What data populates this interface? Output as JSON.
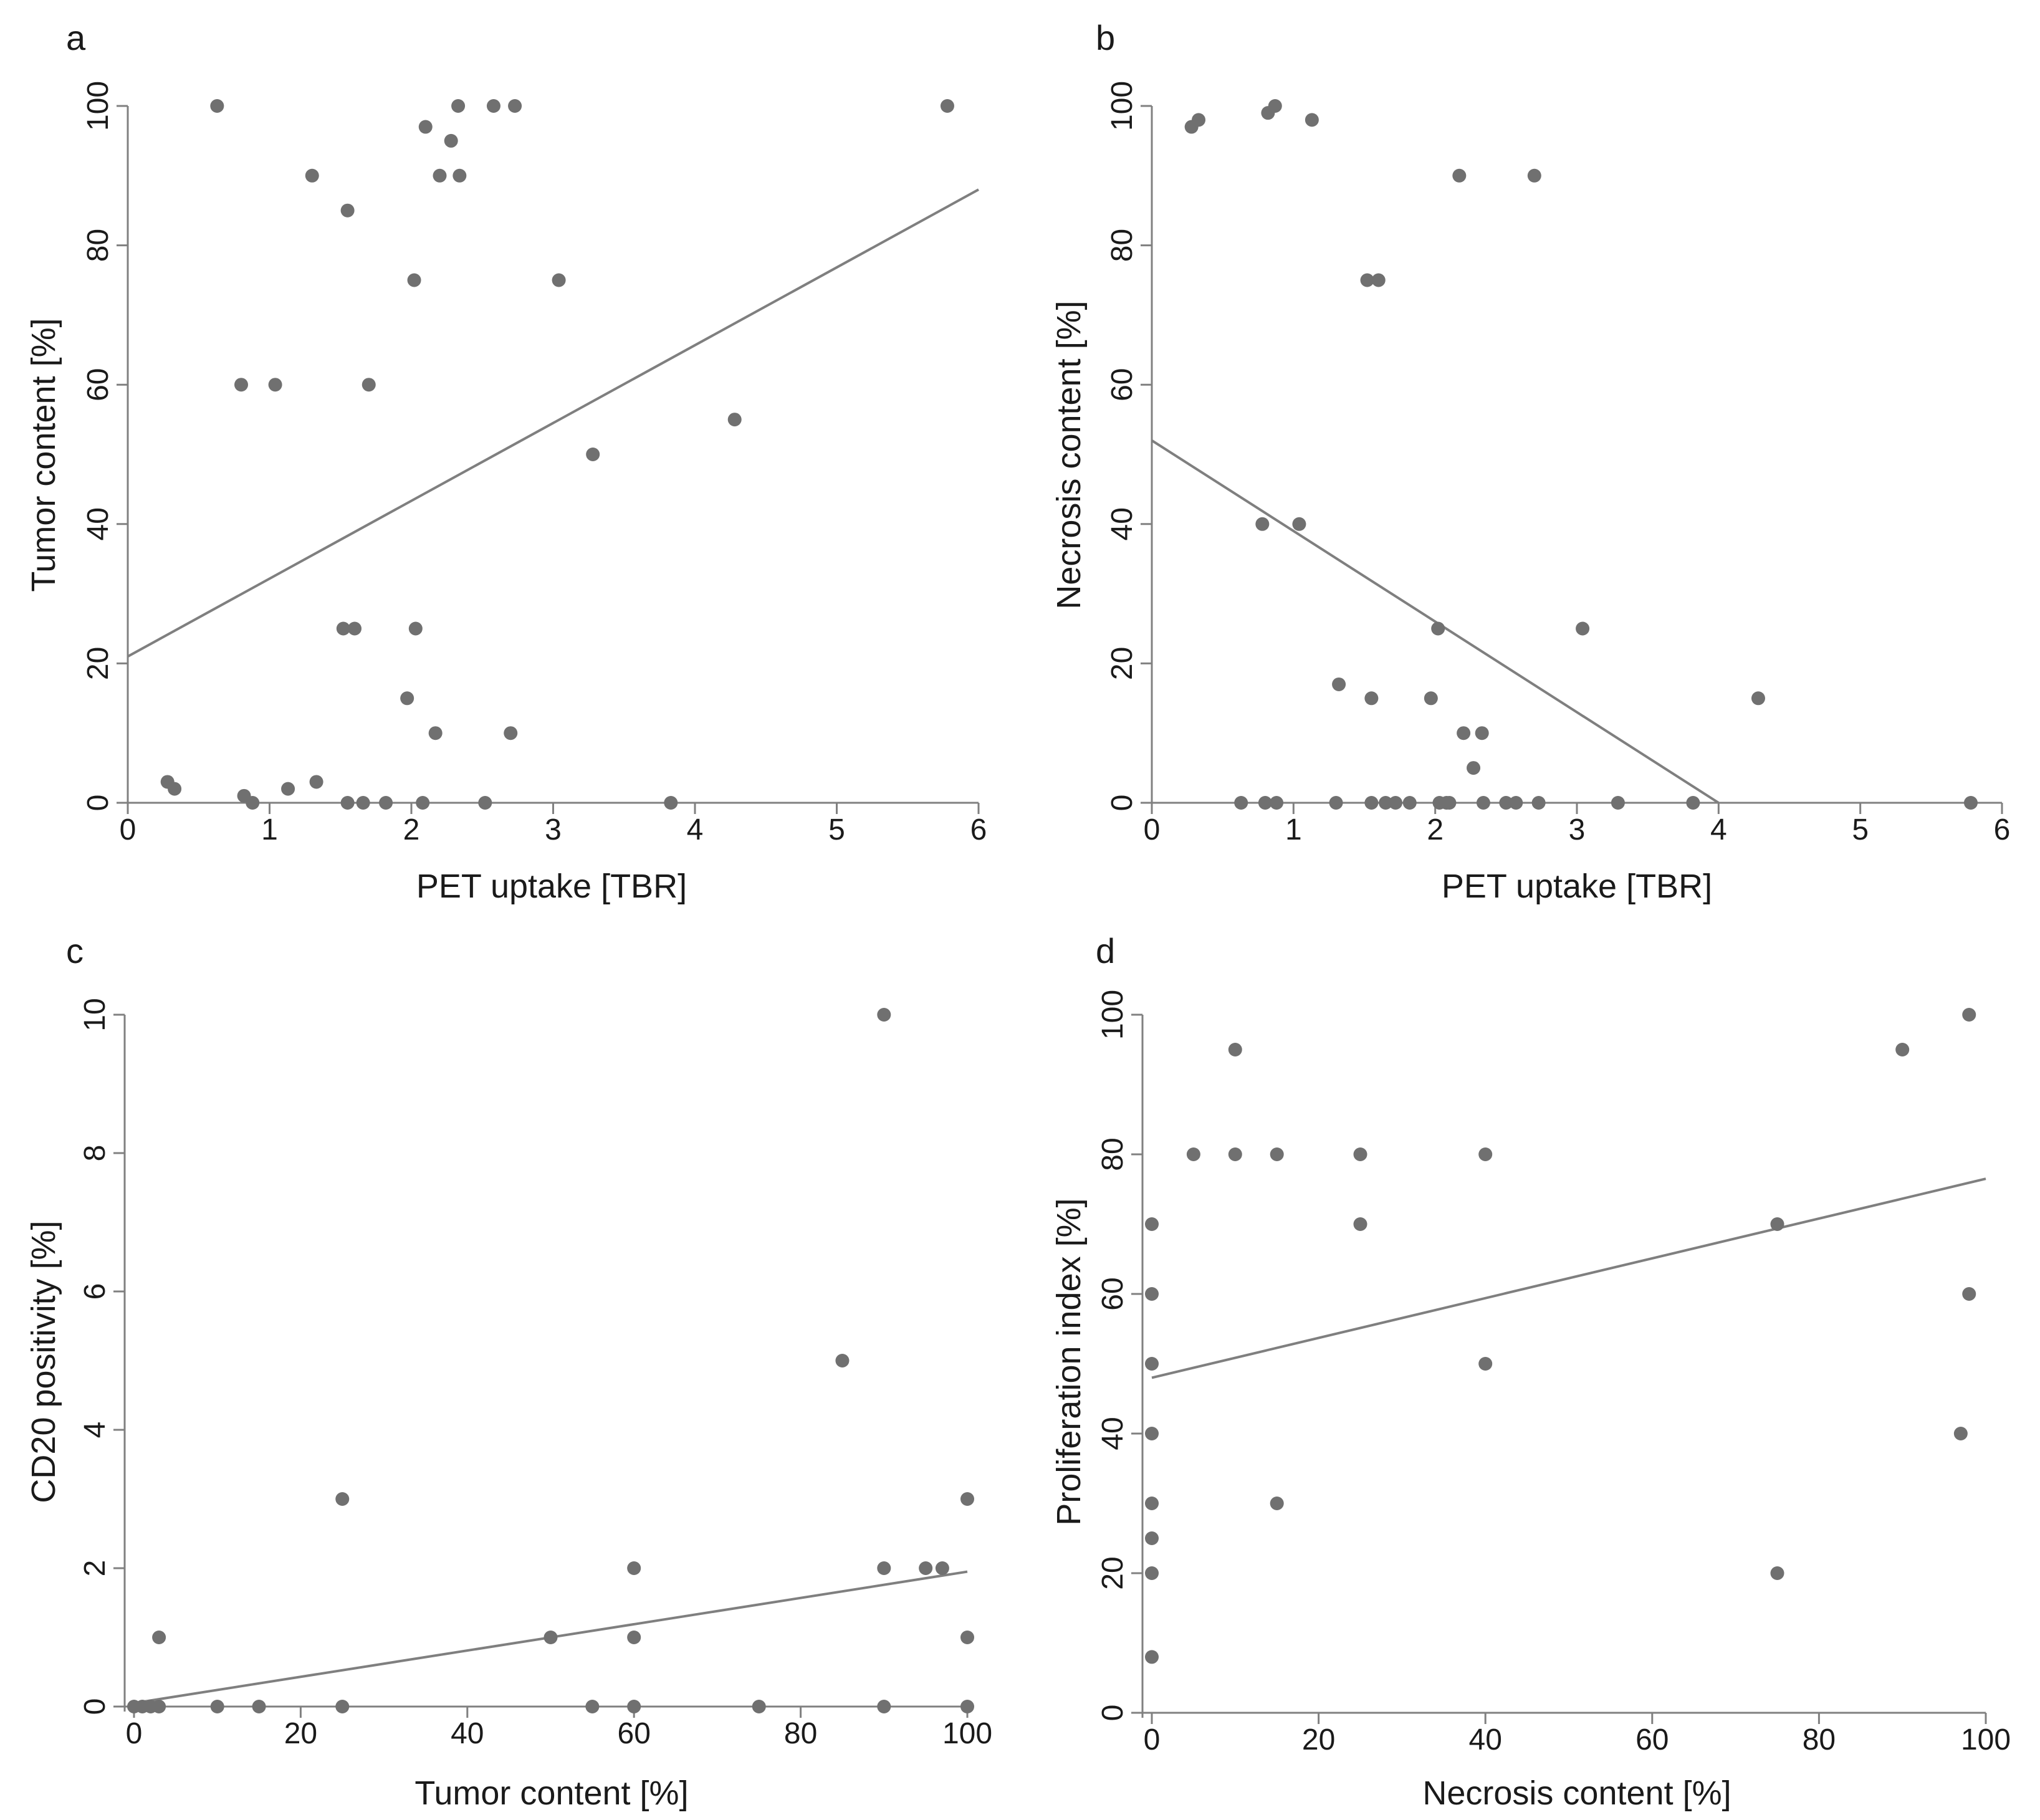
{
  "figure": {
    "colors": {
      "point": "#707070",
      "axis": "#808080",
      "fit_line": "#7f7f7f",
      "text": "#1a1a1a"
    }
  },
  "chart_data": [
    {
      "id": "a",
      "panel_label": "a",
      "type": "scatter",
      "xlabel": "PET uptake [TBR]",
      "ylabel": "Tumor content [%]",
      "xlim": [
        0,
        6
      ],
      "ylim": [
        0,
        100
      ],
      "xticks": [
        0,
        1,
        2,
        3,
        4,
        5,
        6
      ],
      "yticks": [
        0,
        20,
        40,
        60,
        80,
        100
      ],
      "fit_line": [
        [
          0,
          21
        ],
        [
          6,
          88
        ]
      ],
      "points": [
        [
          0.63,
          100
        ],
        [
          0.28,
          3
        ],
        [
          0.33,
          2
        ],
        [
          0.8,
          60
        ],
        [
          0.82,
          1
        ],
        [
          0.88,
          0
        ],
        [
          1.04,
          60
        ],
        [
          1.13,
          2
        ],
        [
          1.3,
          90
        ],
        [
          1.33,
          3
        ],
        [
          1.52,
          25
        ],
        [
          1.55,
          85
        ],
        [
          1.55,
          0
        ],
        [
          1.6,
          25
        ],
        [
          1.66,
          0
        ],
        [
          1.7,
          60
        ],
        [
          1.82,
          0
        ],
        [
          1.97,
          15
        ],
        [
          2.02,
          75
        ],
        [
          2.03,
          25
        ],
        [
          2.08,
          0
        ],
        [
          2.1,
          97
        ],
        [
          2.17,
          10
        ],
        [
          2.2,
          90
        ],
        [
          2.28,
          95
        ],
        [
          2.33,
          100
        ],
        [
          2.34,
          90
        ],
        [
          2.52,
          0
        ],
        [
          2.58,
          100
        ],
        [
          2.7,
          10
        ],
        [
          2.73,
          100
        ],
        [
          3.04,
          75
        ],
        [
          3.28,
          50
        ],
        [
          3.83,
          0
        ],
        [
          4.28,
          55
        ],
        [
          5.78,
          100
        ]
      ]
    },
    {
      "id": "b",
      "panel_label": "b",
      "type": "scatter",
      "xlabel": "PET uptake [TBR]",
      "ylabel": "Necrosis content [%]",
      "xlim": [
        0,
        6
      ],
      "ylim": [
        0,
        100
      ],
      "xticks": [
        0,
        1,
        2,
        3,
        4,
        5,
        6
      ],
      "yticks": [
        0,
        20,
        40,
        60,
        80,
        100
      ],
      "fit_line": [
        [
          0,
          52
        ],
        [
          4,
          0
        ]
      ],
      "points": [
        [
          0.28,
          97
        ],
        [
          0.33,
          98
        ],
        [
          0.63,
          0
        ],
        [
          0.78,
          40
        ],
        [
          0.8,
          0
        ],
        [
          0.82,
          99
        ],
        [
          0.87,
          100
        ],
        [
          0.88,
          0
        ],
        [
          1.04,
          40
        ],
        [
          1.13,
          98
        ],
        [
          1.3,
          0
        ],
        [
          1.32,
          17
        ],
        [
          1.52,
          75
        ],
        [
          1.55,
          15
        ],
        [
          1.55,
          0
        ],
        [
          1.6,
          75
        ],
        [
          1.65,
          0
        ],
        [
          1.72,
          0
        ],
        [
          1.82,
          0
        ],
        [
          1.97,
          15
        ],
        [
          2.02,
          25
        ],
        [
          2.03,
          0
        ],
        [
          2.08,
          0
        ],
        [
          2.1,
          0
        ],
        [
          2.17,
          90
        ],
        [
          2.2,
          10
        ],
        [
          2.27,
          5
        ],
        [
          2.33,
          10
        ],
        [
          2.34,
          0
        ],
        [
          2.5,
          0
        ],
        [
          2.57,
          0
        ],
        [
          2.7,
          90
        ],
        [
          2.73,
          0
        ],
        [
          3.04,
          25
        ],
        [
          3.29,
          0
        ],
        [
          3.82,
          0
        ],
        [
          4.28,
          15
        ],
        [
          5.78,
          0
        ]
      ]
    },
    {
      "id": "c",
      "panel_label": "c",
      "type": "scatter",
      "xlabel": "Tumor content [%]",
      "ylabel": "CD20 positivity [%]",
      "xlim": [
        0,
        100
      ],
      "ylim": [
        0,
        10
      ],
      "xticks": [
        0,
        20,
        40,
        60,
        80,
        100
      ],
      "yticks": [
        0,
        2,
        4,
        6,
        8,
        10
      ],
      "fit_line": [
        [
          0,
          0.05
        ],
        [
          100,
          1.95
        ]
      ],
      "points": [
        [
          0,
          0
        ],
        [
          1,
          0
        ],
        [
          2,
          0
        ],
        [
          3,
          0
        ],
        [
          3,
          1
        ],
        [
          10,
          0
        ],
        [
          15,
          0
        ],
        [
          25,
          3
        ],
        [
          25,
          0
        ],
        [
          50,
          1
        ],
        [
          55,
          0
        ],
        [
          60,
          2
        ],
        [
          60,
          1
        ],
        [
          60,
          0
        ],
        [
          75,
          0
        ],
        [
          85,
          5
        ],
        [
          90,
          10
        ],
        [
          90,
          2
        ],
        [
          90,
          0
        ],
        [
          95,
          2
        ],
        [
          97,
          2
        ],
        [
          100,
          3
        ],
        [
          100,
          1
        ],
        [
          100,
          0
        ]
      ]
    },
    {
      "id": "d",
      "panel_label": "d",
      "type": "scatter",
      "xlabel": "Necrosis content [%]",
      "ylabel": "Proliferation index [%]",
      "xlim": [
        0,
        100
      ],
      "ylim": [
        0,
        100
      ],
      "xticks": [
        0,
        20,
        40,
        60,
        80,
        100
      ],
      "yticks": [
        0,
        20,
        40,
        60,
        80,
        100
      ],
      "fit_line": [
        [
          0,
          48
        ],
        [
          100,
          76.5
        ]
      ],
      "points": [
        [
          0,
          70
        ],
        [
          0,
          60
        ],
        [
          0,
          50
        ],
        [
          0,
          40
        ],
        [
          0,
          30
        ],
        [
          0,
          25
        ],
        [
          0,
          20
        ],
        [
          0,
          8
        ],
        [
          5,
          80
        ],
        [
          10,
          95
        ],
        [
          10,
          80
        ],
        [
          15,
          80
        ],
        [
          15,
          30
        ],
        [
          25,
          80
        ],
        [
          25,
          70
        ],
        [
          40,
          80
        ],
        [
          40,
          50
        ],
        [
          75,
          70
        ],
        [
          75,
          20
        ],
        [
          90,
          95
        ],
        [
          97,
          40
        ],
        [
          98,
          100
        ],
        [
          98,
          60
        ]
      ]
    }
  ]
}
